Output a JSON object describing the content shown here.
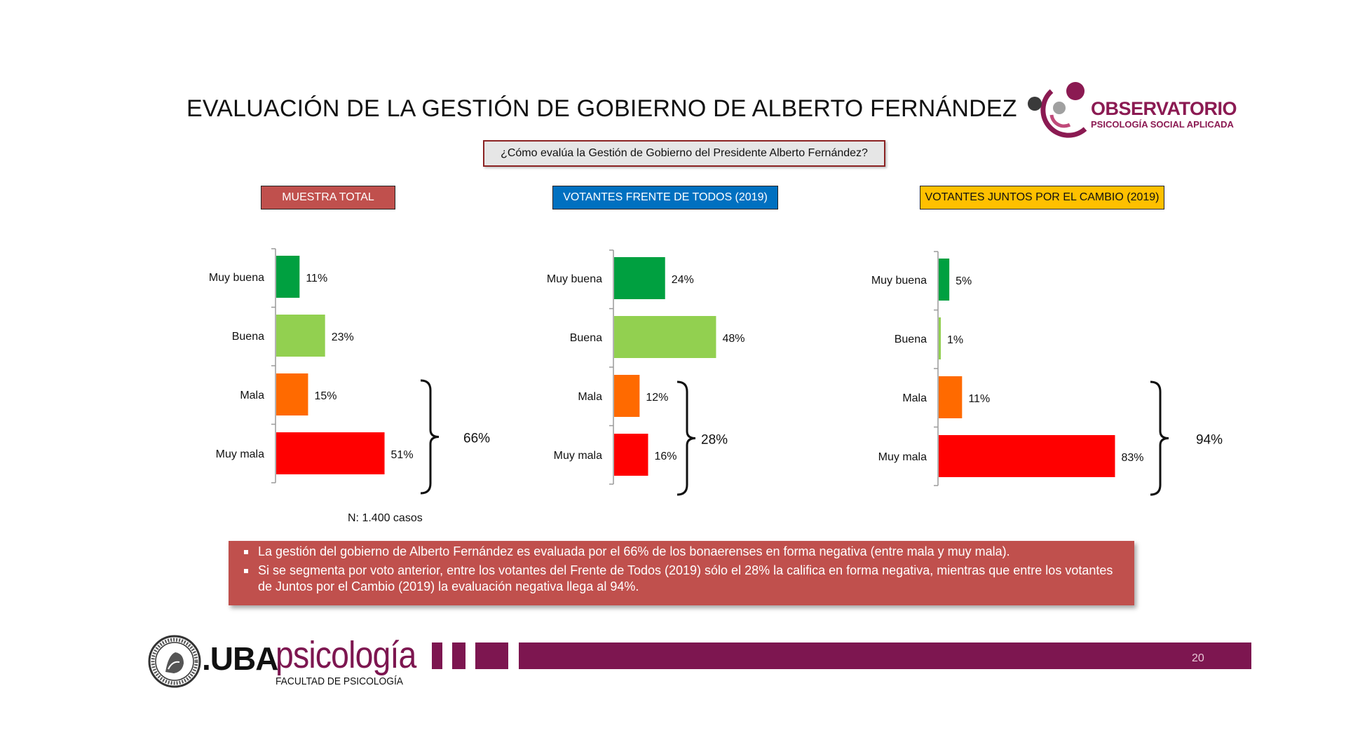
{
  "title": "EVALUACIÓN DE LA GESTIÓN DE GOBIERNO DE ALBERTO FERNÁNDEZ",
  "logo": {
    "name": "OBSERVATORIO",
    "subtitle": "PSICOLOGÍA SOCIAL APLICADA",
    "color": "#8b1a52"
  },
  "question": "¿Cómo evalúa la Gestión de Gobierno del Presidente Alberto Fernández?",
  "colors": {
    "Muy buena": "#00a040",
    "Buena": "#92d050",
    "Mala": "#ff6a00",
    "Muy mala": "#ff0000"
  },
  "chart_data": [
    {
      "type": "bar",
      "orientation": "horizontal",
      "title": "MUESTRA TOTAL",
      "categories": [
        "Muy buena",
        "Buena",
        "Mala",
        "Muy mala"
      ],
      "values": [
        11,
        23,
        15,
        51
      ],
      "value_labels": [
        "11%",
        "23%",
        "15%",
        "51%"
      ],
      "bracket_label": "66%",
      "header_color": "#c0504d"
    },
    {
      "type": "bar",
      "orientation": "horizontal",
      "title": "VOTANTES FRENTE DE TODOS (2019)",
      "categories": [
        "Muy buena",
        "Buena",
        "Mala",
        "Muy mala"
      ],
      "values": [
        24,
        48,
        12,
        16
      ],
      "value_labels": [
        "24%",
        "48%",
        "12%",
        "16%"
      ],
      "bracket_label": "28%",
      "header_color": "#0070c0"
    },
    {
      "type": "bar",
      "orientation": "horizontal",
      "title": "VOTANTES JUNTOS POR EL CAMBIO (2019)",
      "categories": [
        "Muy buena",
        "Buena",
        "Mala",
        "Muy mala"
      ],
      "values": [
        5,
        1,
        11,
        83
      ],
      "value_labels": [
        "5%",
        "1%",
        "11%",
        "83%"
      ],
      "bracket_label": "94%",
      "header_color": "#ffc000"
    }
  ],
  "sample_note": "N: 1.400 casos",
  "summary": [
    "La gestión del gobierno de Alberto Fernández es evaluada por el 66% de los bonaerenses en forma negativa (entre mala y muy mala).",
    "Si se segmenta por voto anterior, entre los votantes del Frente de Todos (2019) sólo el 28% la califica en forma negativa, mientras que entre los votantes de Juntos por el Cambio (2019) la evaluación negativa llega al 94%."
  ],
  "footer": {
    "dot_uba": ".UBA",
    "psicologia": "psicología",
    "faculty": "FACULTAD DE PSICOLOGÍA",
    "page_number": "20"
  }
}
